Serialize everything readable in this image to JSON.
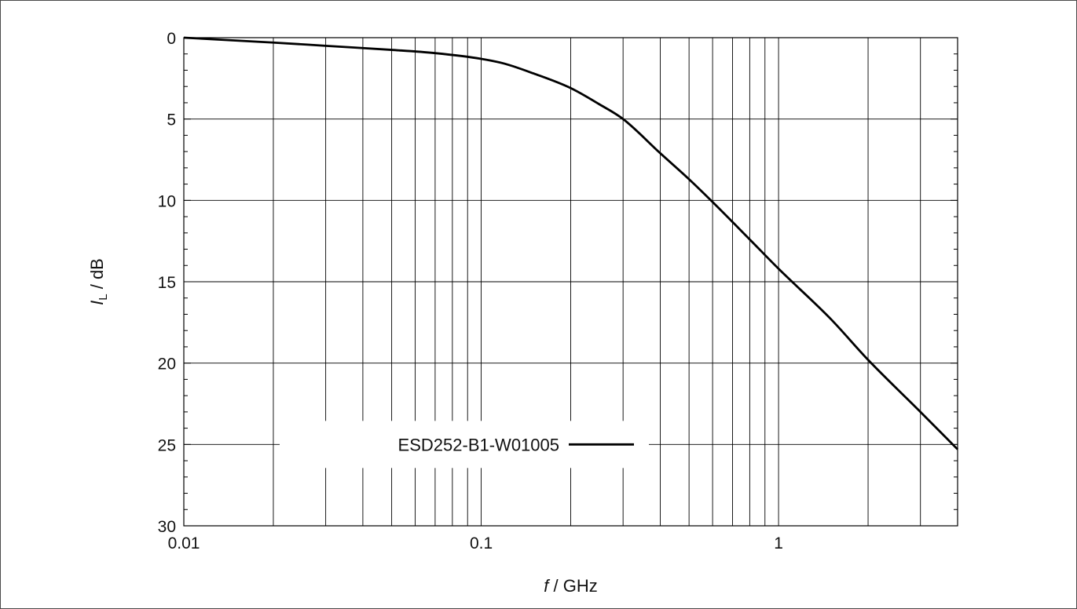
{
  "chart_data": {
    "type": "line",
    "xscale": "log",
    "xlim": [
      0.01,
      4
    ],
    "ylim": [
      0,
      30
    ],
    "y_inverted": true,
    "grid": true,
    "xlabel_var": "f",
    "xlabel_unit": " / GHz",
    "ylabel_var": "I",
    "ylabel_sub": "L",
    "ylabel_unit": " / dB",
    "x_ticks": [
      {
        "value": 0.01,
        "label": "0.01"
      },
      {
        "value": 0.1,
        "label": "0.1"
      },
      {
        "value": 1,
        "label": "1"
      }
    ],
    "y_ticks": [
      {
        "value": 0,
        "label": "0"
      },
      {
        "value": 5,
        "label": "5"
      },
      {
        "value": 10,
        "label": "10"
      },
      {
        "value": 15,
        "label": "15"
      },
      {
        "value": 20,
        "label": "20"
      },
      {
        "value": 25,
        "label": "25"
      },
      {
        "value": 30,
        "label": "30"
      }
    ],
    "legend_position": "bottom-center",
    "series": [
      {
        "name": "ESD252-B1-W01005",
        "color": "#000000",
        "x": [
          0.01,
          0.02,
          0.03,
          0.05,
          0.07,
          0.1,
          0.12,
          0.15,
          0.2,
          0.25,
          0.3,
          0.4,
          0.5,
          0.6,
          0.8,
          1,
          1.5,
          2,
          3,
          4
        ],
        "y": [
          0.0,
          0.3,
          0.5,
          0.75,
          0.95,
          1.3,
          1.6,
          2.2,
          3.1,
          4.1,
          5.0,
          7.1,
          8.7,
          10.1,
          12.4,
          14.2,
          17.3,
          19.8,
          23.0,
          25.3
        ]
      }
    ]
  }
}
